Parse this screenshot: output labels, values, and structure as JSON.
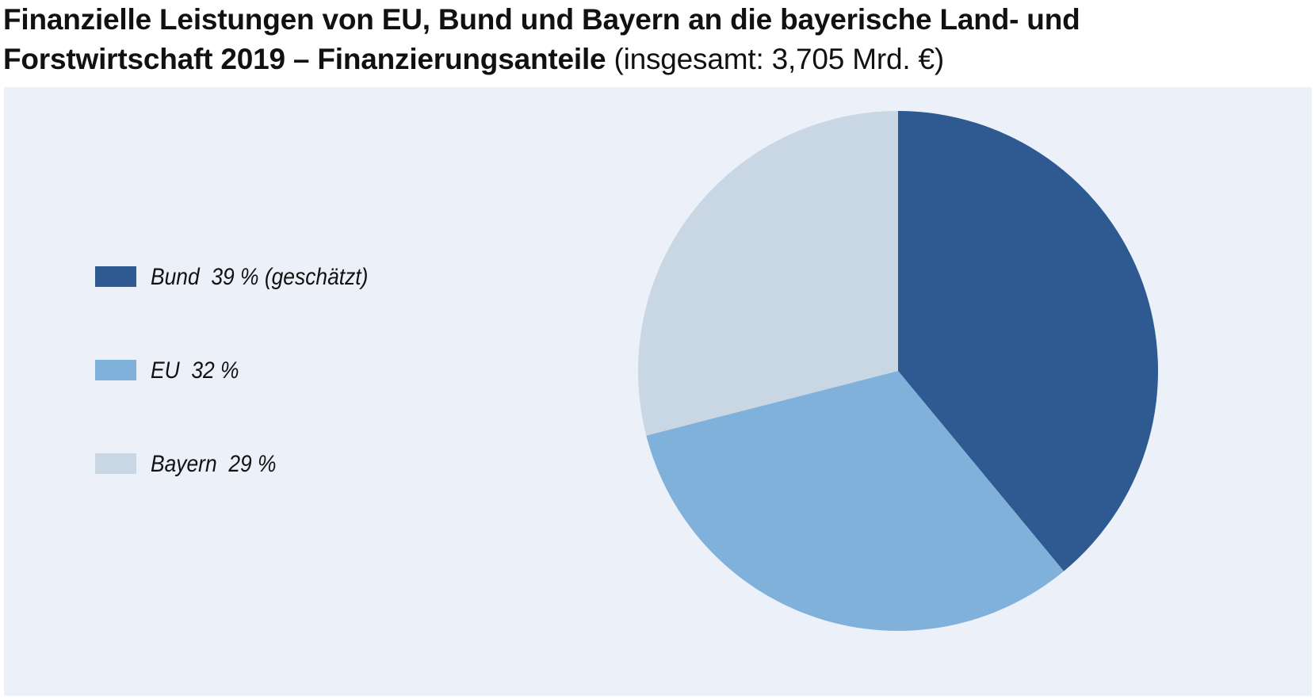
{
  "title": {
    "bold": "Finanzielle Leistungen von EU, Bund und Bayern an die bayerische Land- und Forstwirtschaft 2019 – Finanzierungsanteile",
    "normal": " (insgesamt: 3,705  Mrd. €)"
  },
  "legend": {
    "items": [
      {
        "label": "Bund  39 % (geschätzt)",
        "color": "#2e5a91"
      },
      {
        "label": "EU  32 %",
        "color": "#80b1da"
      },
      {
        "label": "Bayern  29 %",
        "color": "#c9d6e4"
      }
    ]
  },
  "chart_data": {
    "type": "pie",
    "title": "Finanzielle Leistungen von EU, Bund und Bayern an die bayerische Land- und Forstwirtschaft 2019 – Finanzierungsanteile (insgesamt: 3,705  Mrd. €)",
    "labels": [
      "Bund",
      "EU",
      "Bayern"
    ],
    "values": [
      39,
      32,
      29
    ],
    "unit": "%",
    "total": "3,705  Mrd. €",
    "colors": [
      "#2e5a91",
      "#80b1da",
      "#c9d6e4"
    ],
    "legend_position": "left",
    "start_angle": "top",
    "direction": "clockwise"
  }
}
